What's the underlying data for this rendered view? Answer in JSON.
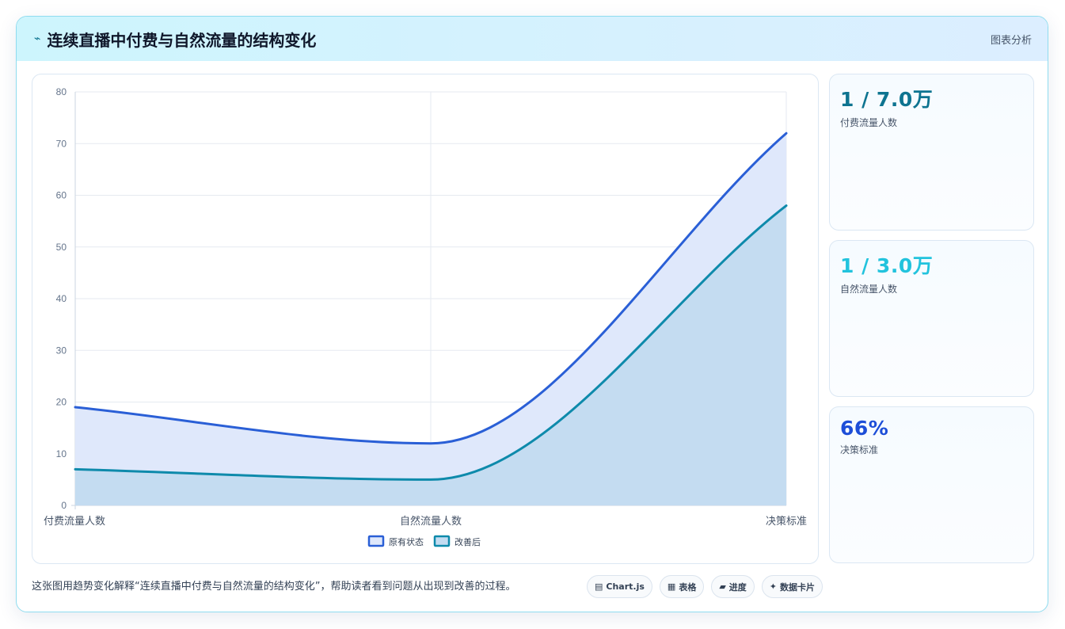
{
  "header": {
    "icon": "⌁",
    "title": "连续直播中付费与自然流量的结构变化",
    "tag": "图表分析"
  },
  "chart_data": {
    "type": "area",
    "categories": [
      "付费流量人数",
      "自然流量人数",
      "决策标准"
    ],
    "series": [
      {
        "name": "原有状态",
        "values": [
          19,
          12,
          72
        ],
        "color": "#2a5fd6",
        "fill": "#dfe8fb"
      },
      {
        "name": "改善后",
        "values": [
          7,
          5,
          58
        ],
        "color": "#0e8aab",
        "fill": "#c4dcf1"
      }
    ],
    "ylim": [
      0,
      80
    ],
    "yticks": [
      0,
      10,
      20,
      30,
      40,
      50,
      60,
      70,
      80
    ],
    "grid": true,
    "legend_position": "bottom"
  },
  "kpis": [
    {
      "value": "1 / 7.0万",
      "label": "付费流量人数",
      "color": "#0e7490"
    },
    {
      "value": "1 / 3.0万",
      "label": "自然流量人数",
      "color": "#22c3dd"
    },
    {
      "value": "66%",
      "label": "决策标准",
      "color": "#1d4ed8"
    }
  ],
  "footer": {
    "text": "这张图用趋势变化解释“连续直播中付费与自然流量的结构变化”，帮助读者看到问题从出现到改善的过程。",
    "chips": [
      {
        "icon": "▤",
        "label": "Chart.js"
      },
      {
        "icon": "▦",
        "label": "表格"
      },
      {
        "icon": "▰",
        "label": "进度"
      },
      {
        "icon": "✦",
        "label": "数据卡片"
      }
    ]
  }
}
